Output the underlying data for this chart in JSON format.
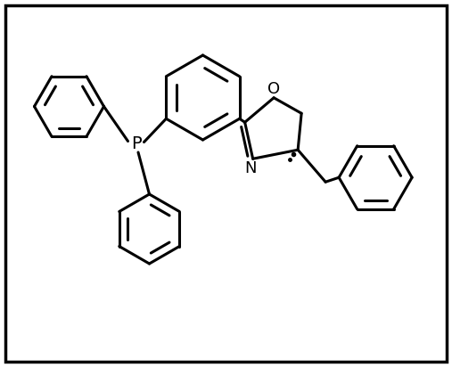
{
  "bg_color": "#ffffff",
  "border_color": "#000000",
  "line_color": "#000000",
  "line_width": 2.2,
  "bond_width": 2.2,
  "font_size_label": 13,
  "figsize": [
    5.07,
    4.12
  ],
  "dpi": 100,
  "xlim": [
    0,
    10.14
  ],
  "ylim": [
    0,
    8.24
  ]
}
